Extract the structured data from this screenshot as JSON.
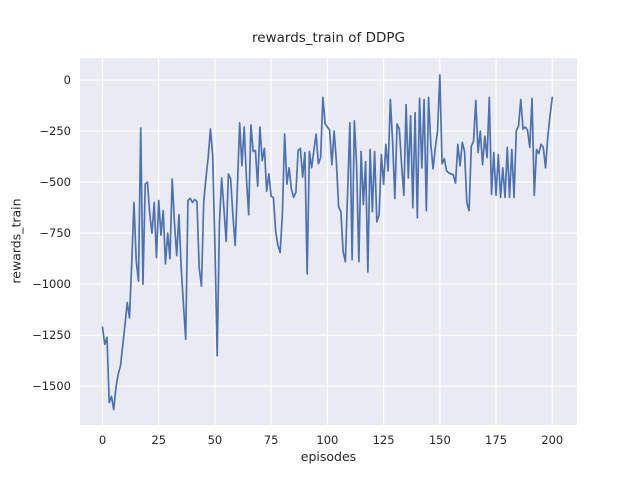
{
  "chart_data": {
    "type": "line",
    "title": "rewards_train of DDPG",
    "xlabel": "episodes",
    "ylabel": "rewards_train",
    "x_ticks": [
      0,
      25,
      50,
      75,
      100,
      125,
      150,
      175,
      200
    ],
    "x_tick_labels": [
      "0",
      "25",
      "50",
      "75",
      "100",
      "125",
      "150",
      "175",
      "200"
    ],
    "y_ticks": [
      0,
      -250,
      -500,
      -750,
      -1000,
      -1250,
      -1500
    ],
    "y_tick_labels": [
      "0",
      "−250",
      "−500",
      "−750",
      "−1000",
      "−1250",
      "−1500"
    ],
    "xlim": [
      -10,
      211
    ],
    "ylim": [
      -1690,
      108
    ],
    "grid": true,
    "legend": false,
    "colors": {
      "line": "#4c72b0",
      "plot_background": "#eaeaf2",
      "grid": "#ffffff",
      "figure_background": "#ffffff",
      "text": "#262626"
    },
    "series": [
      {
        "name": "rewards_train",
        "x_start": 0,
        "x_step": 1,
        "values": [
          -1210,
          -1295,
          -1260,
          -1580,
          -1550,
          -1615,
          -1505,
          -1440,
          -1400,
          -1300,
          -1200,
          -1090,
          -1165,
          -900,
          -600,
          -885,
          -985,
          -235,
          -1000,
          -510,
          -500,
          -655,
          -750,
          -600,
          -870,
          -590,
          -760,
          -640,
          -900,
          -750,
          -875,
          -485,
          -700,
          -860,
          -660,
          -920,
          -1100,
          -1270,
          -590,
          -580,
          -600,
          -585,
          -595,
          -920,
          -1010,
          -600,
          -480,
          -380,
          -240,
          -370,
          -810,
          -1350,
          -700,
          -480,
          -630,
          -790,
          -460,
          -485,
          -665,
          -810,
          -520,
          -210,
          -420,
          -230,
          -480,
          -660,
          -220,
          -350,
          -345,
          -520,
          -230,
          -395,
          -335,
          -545,
          -460,
          -570,
          -575,
          -740,
          -810,
          -845,
          -655,
          -265,
          -510,
          -430,
          -535,
          -575,
          -550,
          -345,
          -335,
          -475,
          -355,
          -950,
          -350,
          -430,
          -345,
          -265,
          -410,
          -380,
          -85,
          -215,
          -230,
          -245,
          -415,
          -250,
          -400,
          -620,
          -645,
          -840,
          -890,
          -550,
          -210,
          -880,
          -200,
          -415,
          -890,
          -350,
          -610,
          -400,
          -940,
          -340,
          -645,
          -350,
          -695,
          -660,
          -365,
          -510,
          -315,
          -445,
          -95,
          -300,
          -580,
          -215,
          -240,
          -415,
          -565,
          -120,
          -480,
          -175,
          -625,
          -160,
          -675,
          -90,
          -430,
          -95,
          -640,
          -85,
          -315,
          -435,
          -330,
          -250,
          25,
          -410,
          -385,
          -445,
          -455,
          -460,
          -465,
          -505,
          -315,
          -420,
          -305,
          -350,
          -600,
          -640,
          -325,
          -300,
          -100,
          -355,
          -250,
          -415,
          -275,
          -380,
          -85,
          -560,
          -355,
          -565,
          -365,
          -575,
          -430,
          -575,
          -330,
          -575,
          -340,
          -575,
          -250,
          -225,
          -95,
          -240,
          -230,
          -245,
          -330,
          -90,
          -565,
          -340,
          -360,
          -315,
          -330,
          -430,
          -280,
          -175,
          -85
        ]
      }
    ]
  }
}
